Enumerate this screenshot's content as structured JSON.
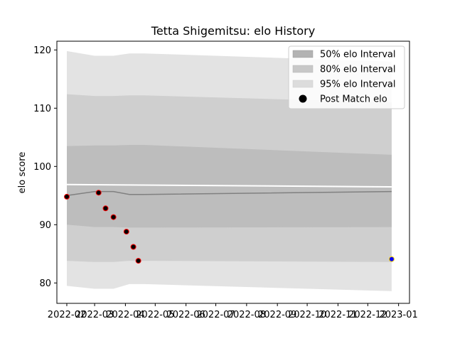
{
  "chart_data": {
    "type": "line",
    "title": "Tetta Shigemitsu: elo History",
    "xlabel": "",
    "ylabel": "elo score",
    "xlim": [
      "2022-01-22",
      "2023-01-12"
    ],
    "ylim": [
      76.5,
      121.5
    ],
    "y_ticks": [
      80,
      90,
      100,
      110,
      120
    ],
    "x_ticks": [
      "2022-02-01",
      "2022-03-01",
      "2022-04-01",
      "2022-05-01",
      "2022-06-01",
      "2022-07-01",
      "2022-08-01",
      "2022-09-01",
      "2022-10-01",
      "2022-11-01",
      "2022-12-01",
      "2023-01-01"
    ],
    "x_tick_labels": [
      "2022-02",
      "2022-03",
      "2022-04",
      "2022-05",
      "2022-06",
      "2022-07",
      "2022-08",
      "2022-09",
      "2022-10",
      "2022-11",
      "2022-12",
      "2023-01"
    ],
    "legend": {
      "location": "upper right",
      "entries": [
        "50% elo Interval",
        "80% elo Interval",
        "95% elo Interval",
        "Post Match elo"
      ]
    },
    "bands": [
      {
        "name": "95% elo Interval",
        "color": "#e3e3e3",
        "x": [
          "2022-02-01",
          "2022-03-01",
          "2022-03-20",
          "2022-04-05",
          "2022-04-20",
          "2022-12-25"
        ],
        "upper": [
          119.8,
          119.0,
          119.0,
          119.4,
          119.4,
          118.0
        ],
        "lower": [
          79.5,
          79.0,
          79.0,
          79.8,
          79.8,
          78.6
        ]
      },
      {
        "name": "80% elo Interval",
        "color": "#cfcfcf",
        "x": [
          "2022-02-01",
          "2022-03-01",
          "2022-03-20",
          "2022-04-05",
          "2022-04-20",
          "2022-12-25"
        ],
        "upper": [
          112.4,
          112.1,
          112.1,
          112.2,
          112.2,
          111.0
        ],
        "lower": [
          83.8,
          83.6,
          83.6,
          83.8,
          83.8,
          83.6
        ]
      },
      {
        "name": "50% elo Interval",
        "color": "#bdbdbd",
        "x": [
          "2022-02-01",
          "2022-03-01",
          "2022-03-20",
          "2022-04-05",
          "2022-04-20",
          "2022-12-25"
        ],
        "upper": [
          103.5,
          103.6,
          103.6,
          103.7,
          103.7,
          102.0
        ],
        "lower": [
          90.0,
          89.6,
          89.6,
          89.5,
          89.5,
          89.6
        ]
      }
    ],
    "white_line": {
      "x": [
        "2022-02-01",
        "2022-12-25"
      ],
      "y": [
        96.9,
        96.5
      ]
    },
    "mean_line": {
      "color": "#808080",
      "x": [
        "2022-02-01",
        "2022-03-01",
        "2022-03-20",
        "2022-04-05",
        "2022-04-20",
        "2022-12-25"
      ],
      "y": [
        95.0,
        95.7,
        95.7,
        95.2,
        95.2,
        95.7
      ]
    },
    "series": [
      {
        "name": "Post Match elo",
        "marker": "circle",
        "fill": "#000000",
        "edge": "#ff0000",
        "x": [
          "2022-02-01",
          "2022-03-05",
          "2022-03-12",
          "2022-03-20",
          "2022-04-02",
          "2022-04-09",
          "2022-04-14"
        ],
        "y": [
          94.8,
          95.5,
          92.8,
          91.3,
          88.8,
          86.2,
          83.8
        ]
      },
      {
        "name": "",
        "marker": "circle",
        "fill": "#0000ff",
        "edge": "#ffd700",
        "x": [
          "2022-12-25"
        ],
        "y": [
          84.1
        ]
      }
    ]
  }
}
